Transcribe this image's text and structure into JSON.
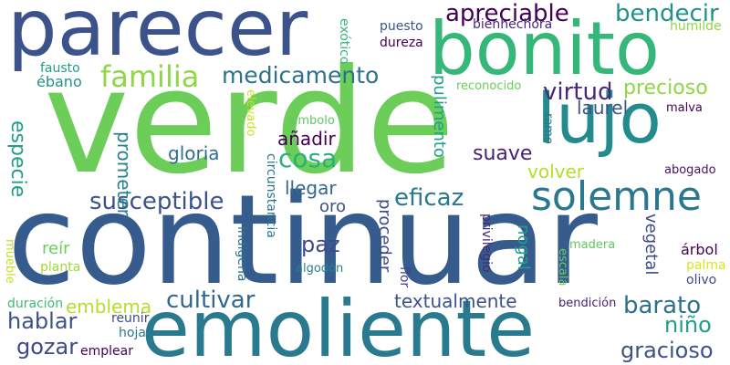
{
  "words": [
    {
      "text": "verde",
      "color": "#6ccd59"
    },
    {
      "text": "continuar",
      "color": "#365c8d"
    },
    {
      "text": "parecer",
      "color": "#3b528b"
    },
    {
      "text": "emoliente",
      "color": "#297a8e"
    },
    {
      "text": "bonito",
      "color": "#35b779"
    },
    {
      "text": "lujo",
      "color": "#238a8d"
    },
    {
      "text": "solemne",
      "color": "#2a788e"
    },
    {
      "text": "familia",
      "color": "#8fd744"
    },
    {
      "text": "medicamento",
      "color": "#2c728e"
    },
    {
      "text": "apreciable",
      "color": "#440154"
    },
    {
      "text": "bendecir",
      "color": "#21918c"
    },
    {
      "text": "susceptible",
      "color": "#3b528b"
    },
    {
      "text": "virtud",
      "color": "#482878"
    },
    {
      "text": "precioso",
      "color": "#8fd744"
    },
    {
      "text": "cosa",
      "color": "#2ab07f"
    },
    {
      "text": "eficaz",
      "color": "#2a788e"
    },
    {
      "text": "barato",
      "color": "#2d708e"
    },
    {
      "text": "paz",
      "color": "#3e4a89"
    },
    {
      "text": "cultivar",
      "color": "#31688e"
    },
    {
      "text": "hablar",
      "color": "#3b528b"
    },
    {
      "text": "gozar",
      "color": "#3e4989"
    },
    {
      "text": "niño",
      "color": "#1f9e89"
    },
    {
      "text": "gracioso",
      "color": "#3b528b"
    },
    {
      "text": "textualmente",
      "color": "#3b528b"
    },
    {
      "text": "especie",
      "color": "#1f9e89"
    },
    {
      "text": "prometer",
      "color": "#26828e"
    },
    {
      "text": "gloria",
      "color": "#2d708e"
    },
    {
      "text": "añadir",
      "color": "#440154"
    },
    {
      "text": "suave",
      "color": "#482173"
    },
    {
      "text": "laurel",
      "color": "#39568c"
    },
    {
      "text": "llegar",
      "color": "#31688e"
    },
    {
      "text": "oro",
      "color": "#3b528b"
    },
    {
      "text": "volver",
      "color": "#b5de2b"
    },
    {
      "text": "emblema",
      "color": "#b5de2b"
    },
    {
      "text": "reír",
      "color": "#6ccd59"
    },
    {
      "text": "pulimento",
      "color": "#1f9e89"
    },
    {
      "text": "proceder",
      "color": "#3e4989"
    },
    {
      "text": "nogal",
      "color": "#1f9e89"
    },
    {
      "text": "vegetal",
      "color": "#3e4a89"
    },
    {
      "text": "circunstancia",
      "color": "#2a788e"
    },
    {
      "text": "exótico",
      "color": "#35b779"
    },
    {
      "text": "puesto",
      "color": "#3b528b"
    },
    {
      "text": "dureza",
      "color": "#440154"
    },
    {
      "text": "bienhechora",
      "color": "#482878"
    },
    {
      "text": "humilde",
      "color": "#8fd744"
    },
    {
      "text": "fausto",
      "color": "#1f9e89"
    },
    {
      "text": "ébano",
      "color": "#21918c"
    },
    {
      "text": "reconocido",
      "color": "#6ccd59"
    },
    {
      "text": "malva",
      "color": "#440154"
    },
    {
      "text": "ramo",
      "color": "#2a788e"
    },
    {
      "text": "abogado",
      "color": "#471164"
    },
    {
      "text": "elevado",
      "color": "#cae11f"
    },
    {
      "text": "símbolo",
      "color": "#5ec962"
    },
    {
      "text": "indígena",
      "color": "#2c728e"
    },
    {
      "text": "flor",
      "color": "#424086"
    },
    {
      "text": "privilegio",
      "color": "#482878"
    },
    {
      "text": "escala",
      "color": "#6ccd59"
    },
    {
      "text": "madera",
      "color": "#5ec962"
    },
    {
      "text": "árbol",
      "color": "#440154"
    },
    {
      "text": "palma",
      "color": "#dde318"
    },
    {
      "text": "olivo",
      "color": "#3e4989"
    },
    {
      "text": "mueble",
      "color": "#cae11f"
    },
    {
      "text": "planta",
      "color": "#a0da39"
    },
    {
      "text": "algodón",
      "color": "#26828e"
    },
    {
      "text": "duración",
      "color": "#3dbc74"
    },
    {
      "text": "reunir",
      "color": "#3e4989"
    },
    {
      "text": "hoja",
      "color": "#2a788e"
    },
    {
      "text": "emplear",
      "color": "#440154"
    },
    {
      "text": "bendición",
      "color": "#482173"
    }
  ]
}
